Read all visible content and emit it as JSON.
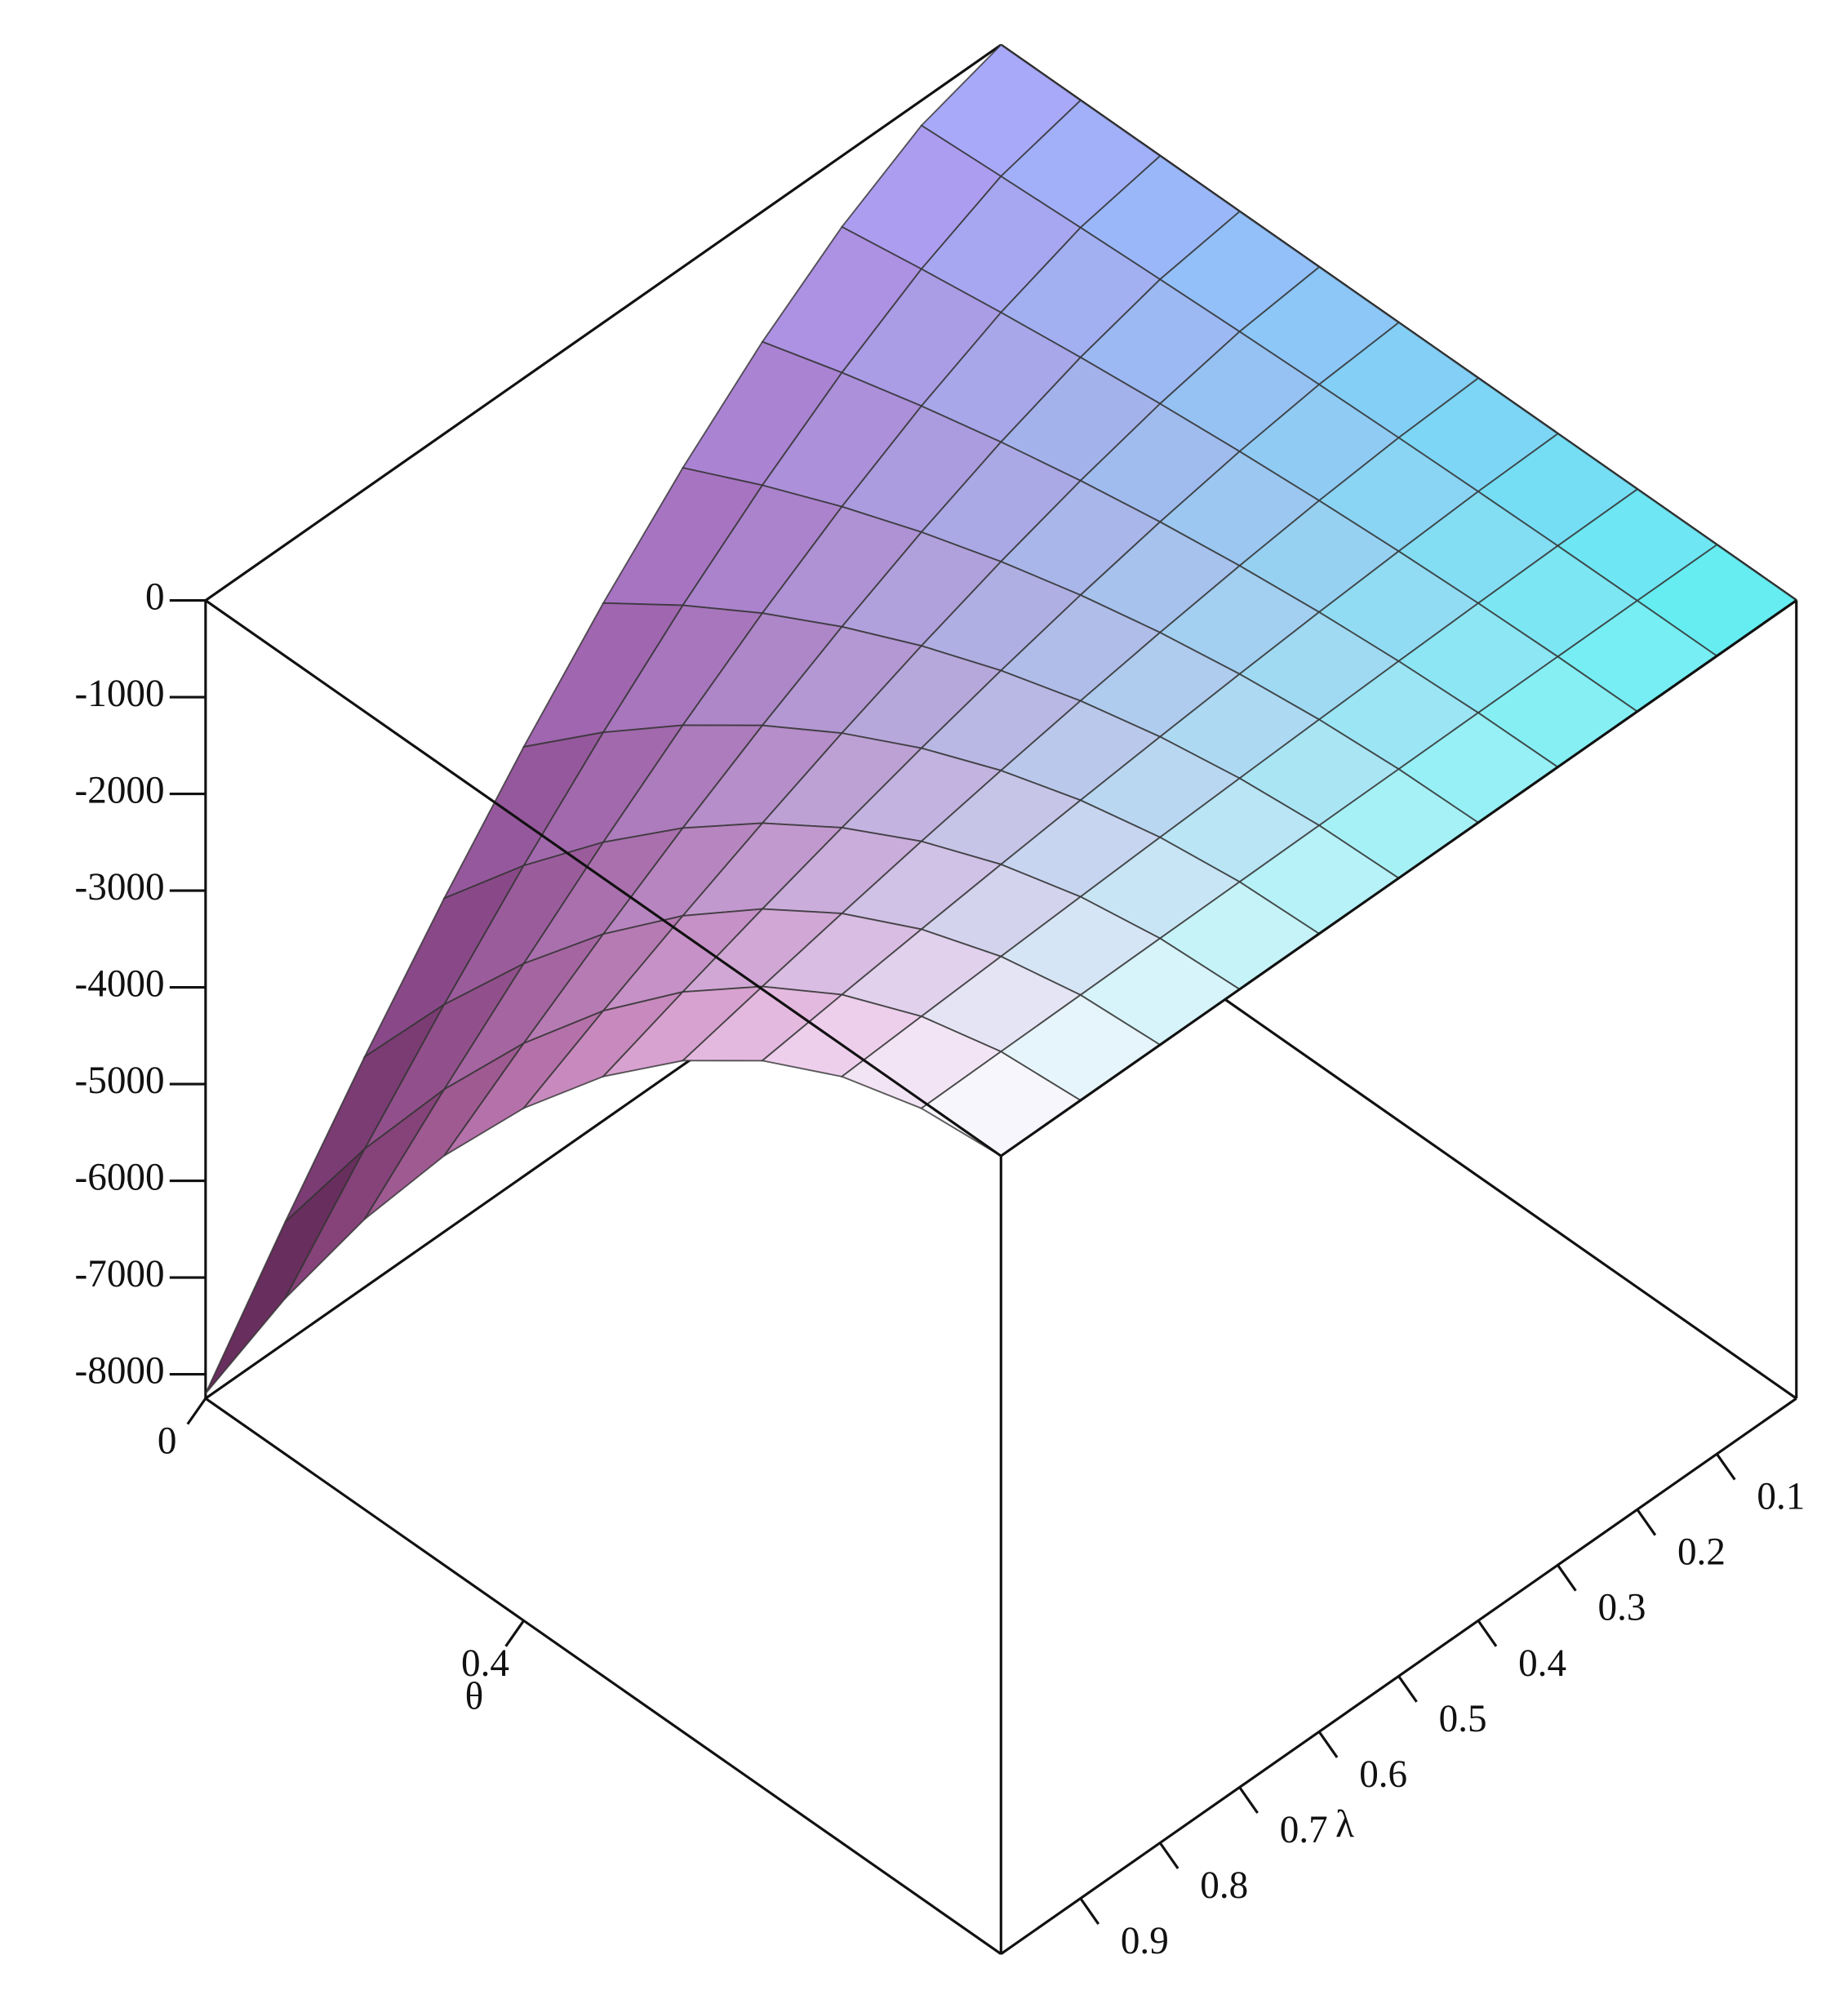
{
  "chart_data": {
    "type": "surface",
    "xlabel": "θ",
    "ylabel": "λ",
    "x": [
      0,
      0.1,
      0.2,
      0.3,
      0.4,
      0.5,
      0.6,
      0.7,
      0.8,
      0.9,
      1
    ],
    "y": [
      0,
      0.1,
      0.2,
      0.3,
      0.4,
      0.5,
      0.6,
      0.7,
      0.8,
      0.9,
      1
    ],
    "z": [
      [
        0,
        0,
        0,
        0,
        0,
        0,
        0,
        0,
        0,
        0,
        0
      ],
      [
        -259,
        -210,
        -166,
        -127,
        -93,
        -65,
        -41,
        -23,
        -10,
        -3,
        0
      ],
      [
        -733,
        -594,
        -469,
        -359,
        -264,
        -183,
        -117,
        -66,
        -29,
        -7,
        0
      ],
      [
        -1347,
        -1091,
        -862,
        -660,
        -485,
        -337,
        -216,
        -121,
        -54,
        -13,
        0
      ],
      [
        -2075,
        -1681,
        -1328,
        -1017,
        -747,
        -519,
        -332,
        -187,
        -83,
        -21,
        0
      ],
      [
        -2899,
        -2348,
        -1855,
        -1421,
        -1044,
        -725,
        -464,
        -261,
        -116,
        -29,
        0
      ],
      [
        -3811,
        -3087,
        -2439,
        -1867,
        -1372,
        -953,
        -610,
        -343,
        -152,
        -38,
        0
      ],
      [
        -4803,
        -3890,
        -3074,
        -2353,
        -1729,
        -1201,
        -768,
        -432,
        -192,
        -48,
        0
      ],
      [
        -5867,
        -4752,
        -3755,
        -2875,
        -2112,
        -1467,
        -939,
        -528,
        -235,
        -59,
        0
      ],
      [
        -7001,
        -5671,
        -4481,
        -3430,
        -2520,
        -1750,
        -1120,
        -630,
        -280,
        -70,
        0
      ],
      [
        -8200,
        -6642,
        -5248,
        -4018,
        -2952,
        -2050,
        -1312,
        -738,
        -328,
        -82,
        0
      ]
    ],
    "xlim": [
      0,
      1
    ],
    "ylim": [
      0,
      1
    ],
    "zlim": [
      -8250,
      0
    ],
    "xticks": [
      0,
      0.4
    ],
    "yticks": [
      0.1,
      0.2,
      0.3,
      0.4,
      0.5,
      0.6,
      0.7,
      0.8,
      0.9
    ],
    "zticks": [
      0,
      -1000,
      -2000,
      -3000,
      -4000,
      -5000,
      -6000,
      -7000,
      -8000
    ]
  }
}
